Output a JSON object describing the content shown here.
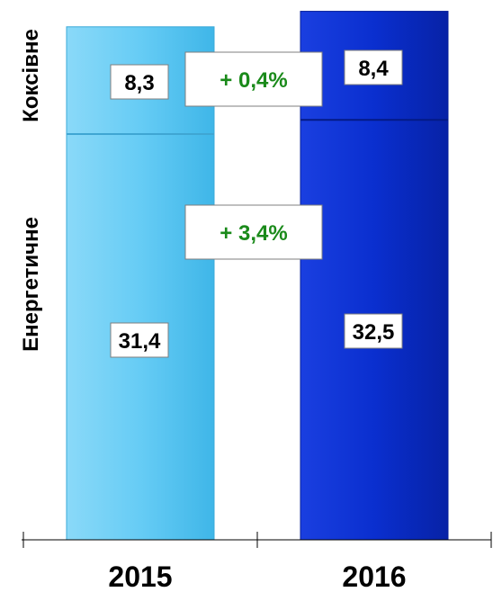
{
  "chart_data": {
    "type": "bar",
    "stacked": true,
    "categories": [
      "2015",
      "2016"
    ],
    "series": [
      {
        "name": "Енергетичне",
        "values": [
          31.4,
          32.5
        ],
        "labels": [
          "31,4",
          "32,5"
        ]
      },
      {
        "name": "Коксівне",
        "values": [
          8.3,
          8.4
        ],
        "labels": [
          "8,3",
          "8,4"
        ]
      }
    ],
    "changes": [
      {
        "series": "Коксівне",
        "text": "+ 0,4%"
      },
      {
        "series": "Енергетичне",
        "text": "+ 3,4%"
      }
    ],
    "title": "",
    "xlabel": "",
    "ylabel": "",
    "ylim": [
      0,
      40.8
    ],
    "grid": false,
    "legend": "none"
  },
  "colors": {
    "bar_2015": "#66ccf5",
    "bar_2016": "#0a2fcf",
    "change_text": "#1a8a1a",
    "axis": "#000000"
  }
}
